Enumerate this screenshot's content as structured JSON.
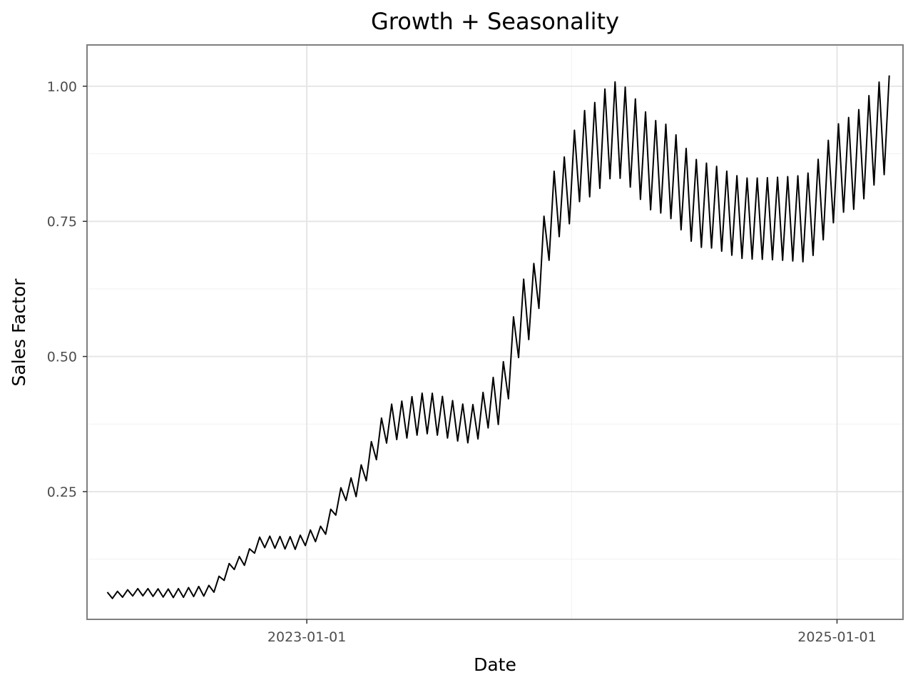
{
  "chart_data": {
    "type": "line",
    "title": "Growth + Seasonality",
    "xlabel": "Date",
    "ylabel": "Sales Factor",
    "x_axis_type": "date",
    "xlim": [
      "2022-03-05",
      "2025-04-01"
    ],
    "ylim": [
      0.015,
      1.075
    ],
    "x_ticks": [
      {
        "value": "2023-01-01",
        "label": "2023-01-01"
      },
      {
        "value": "2025-01-01",
        "label": "2025-01-01"
      }
    ],
    "x_minor_ticks": [
      "2022-01-01",
      "2024-01-01"
    ],
    "y_ticks": [
      {
        "value": 0.25,
        "label": "0.25"
      },
      {
        "value": 0.5,
        "label": "0.50"
      },
      {
        "value": 0.75,
        "label": "0.75"
      },
      {
        "value": 1.0,
        "label": "1.00"
      }
    ],
    "y_minor_ticks": [
      0.125,
      0.375,
      0.625,
      0.875
    ],
    "grid": true,
    "legend": "none",
    "frequency": "weekly",
    "series": [
      {
        "color": "#000000",
        "trend": [
          {
            "x": "2022-04-01",
            "y": 0.058
          },
          {
            "x": "2022-05-15",
            "y": 0.064
          },
          {
            "x": "2022-07-01",
            "y": 0.062
          },
          {
            "x": "2022-08-15",
            "y": 0.066
          },
          {
            "x": "2022-10-01",
            "y": 0.12
          },
          {
            "x": "2022-11-01",
            "y": 0.157
          },
          {
            "x": "2022-12-15",
            "y": 0.155
          },
          {
            "x": "2023-01-15",
            "y": 0.17
          },
          {
            "x": "2023-03-01",
            "y": 0.255
          },
          {
            "x": "2023-05-01",
            "y": 0.38
          },
          {
            "x": "2023-06-15",
            "y": 0.395
          },
          {
            "x": "2023-08-15",
            "y": 0.375
          },
          {
            "x": "2023-09-20",
            "y": 0.42
          },
          {
            "x": "2023-11-01",
            "y": 0.59
          },
          {
            "x": "2023-12-15",
            "y": 0.79
          },
          {
            "x": "2024-01-20",
            "y": 0.875
          },
          {
            "x": "2024-03-01",
            "y": 0.92
          },
          {
            "x": "2024-05-01",
            "y": 0.85
          },
          {
            "x": "2024-07-01",
            "y": 0.78
          },
          {
            "x": "2024-09-01",
            "y": 0.755
          },
          {
            "x": "2024-11-15",
            "y": 0.755
          },
          {
            "x": "2025-01-15",
            "y": 0.855
          },
          {
            "x": "2025-03-15",
            "y": 0.93
          }
        ],
        "seasonal_amplitude": [
          {
            "x": "2022-04-01",
            "y": 0.006
          },
          {
            "x": "2022-10-01",
            "y": 0.01
          },
          {
            "x": "2023-01-01",
            "y": 0.012
          },
          {
            "x": "2023-06-15",
            "y": 0.038
          },
          {
            "x": "2023-08-15",
            "y": 0.035
          },
          {
            "x": "2023-11-01",
            "y": 0.06
          },
          {
            "x": "2024-03-01",
            "y": 0.088
          },
          {
            "x": "2024-09-01",
            "y": 0.075
          },
          {
            "x": "2025-03-15",
            "y": 0.09
          }
        ]
      }
    ]
  }
}
